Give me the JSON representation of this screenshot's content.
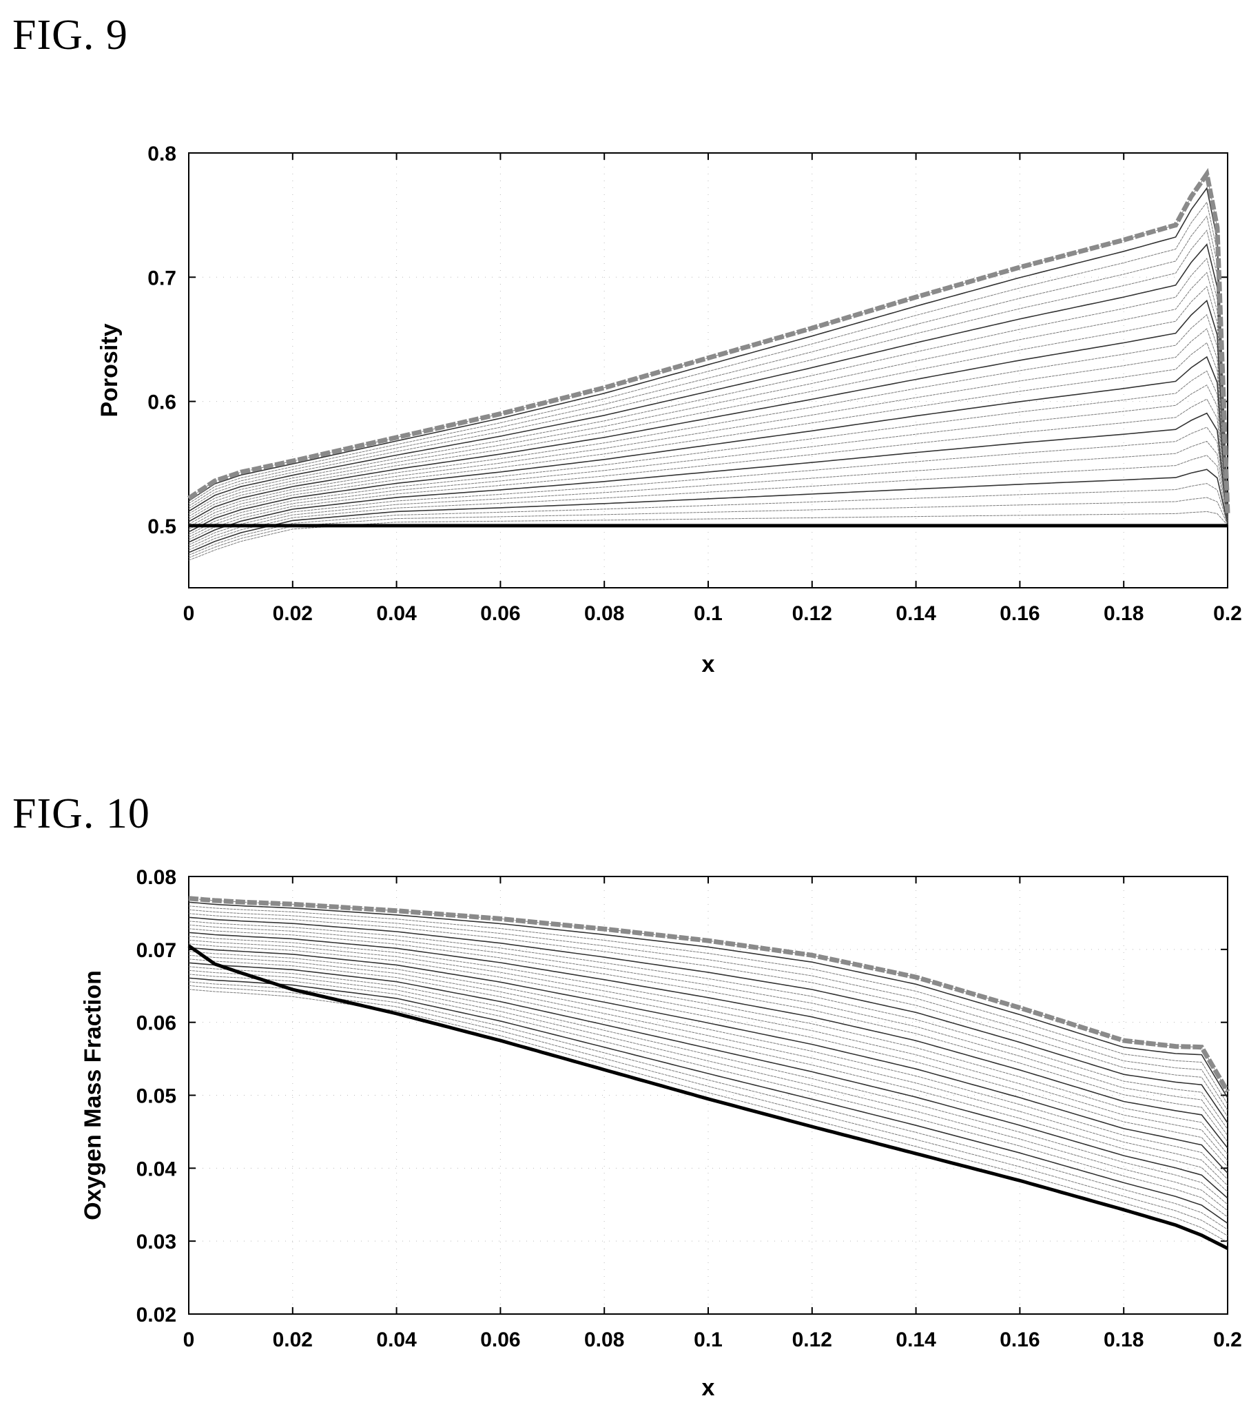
{
  "figures": [
    {
      "label": "FIG. 9",
      "chart_data": {
        "type": "line",
        "xlabel": "x",
        "ylabel": "Porosity",
        "xlim": [
          0,
          0.2
        ],
        "ylim": [
          0.45,
          0.8
        ],
        "x_ticks": [
          "0",
          "0.02",
          "0.04",
          "0.06",
          "0.08",
          "0.1",
          "0.12",
          "0.14",
          "0.16",
          "0.18",
          "0.2"
        ],
        "y_ticks": [
          "0.5",
          "0.6",
          "0.7",
          "0.8"
        ],
        "grid": "dotted",
        "legend": "none",
        "colors": {
          "thin_series": "#7a7a7a",
          "bold_initial": "#000000",
          "bold_final": "#8a8a8a",
          "medium": "#333333"
        },
        "x": [
          0,
          0.005,
          0.01,
          0.02,
          0.04,
          0.06,
          0.08,
          0.1,
          0.12,
          0.14,
          0.16,
          0.18,
          0.19,
          0.193,
          0.196,
          0.198,
          0.2
        ],
        "series_count": 26,
        "initial": [
          0.5,
          0.5,
          0.5,
          0.5,
          0.5,
          0.5,
          0.5,
          0.5,
          0.5,
          0.5,
          0.5,
          0.5,
          0.5,
          0.5,
          0.5,
          0.5,
          0.5
        ],
        "final": [
          0.522,
          0.536,
          0.543,
          0.552,
          0.571,
          0.59,
          0.611,
          0.635,
          0.659,
          0.684,
          0.708,
          0.73,
          0.742,
          0.765,
          0.783,
          0.74,
          0.51
        ],
        "lower_envelope": [
          0.47,
          0.478,
          0.485,
          0.495,
          0.5,
          0.5,
          0.5,
          0.5,
          0.5,
          0.5,
          0.5,
          0.5,
          0.5,
          0.5,
          0.5,
          0.5,
          0.5
        ]
      }
    },
    {
      "label": "FIG. 10",
      "chart_data": {
        "type": "line",
        "xlabel": "x",
        "ylabel": "Oxygen Mass Fraction",
        "xlim": [
          0,
          0.2
        ],
        "ylim": [
          0.02,
          0.08
        ],
        "x_ticks": [
          "0",
          "0.02",
          "0.04",
          "0.06",
          "0.08",
          "0.1",
          "0.12",
          "0.14",
          "0.16",
          "0.18",
          "0.2"
        ],
        "y_ticks": [
          "0.02",
          "0.03",
          "0.04",
          "0.05",
          "0.06",
          "0.07",
          "0.08"
        ],
        "grid": "dotted",
        "legend": "none",
        "colors": {
          "thin_series": "#7a7a7a",
          "bold_initial": "#000000",
          "bold_final": "#8a8a8a",
          "medium": "#333333"
        },
        "x": [
          0,
          0.005,
          0.01,
          0.02,
          0.04,
          0.06,
          0.08,
          0.1,
          0.12,
          0.14,
          0.16,
          0.18,
          0.19,
          0.195,
          0.2
        ],
        "series_count": 26,
        "initial": [
          0.0705,
          0.068,
          0.0668,
          0.0645,
          0.0612,
          0.0575,
          0.0535,
          0.0495,
          0.0457,
          0.042,
          0.0383,
          0.0343,
          0.0322,
          0.0308,
          0.029
        ],
        "final": [
          0.077,
          0.0767,
          0.0765,
          0.0762,
          0.0753,
          0.0742,
          0.0728,
          0.0712,
          0.0692,
          0.0662,
          0.062,
          0.0575,
          0.0567,
          0.0566,
          0.0505
        ],
        "lower_envelope": [
          0.064,
          0.0637,
          0.0635,
          0.063,
          0.061,
          0.0575,
          0.0535,
          0.0495,
          0.0457,
          0.042,
          0.0383,
          0.0343,
          0.0322,
          0.0308,
          0.029
        ]
      }
    }
  ]
}
